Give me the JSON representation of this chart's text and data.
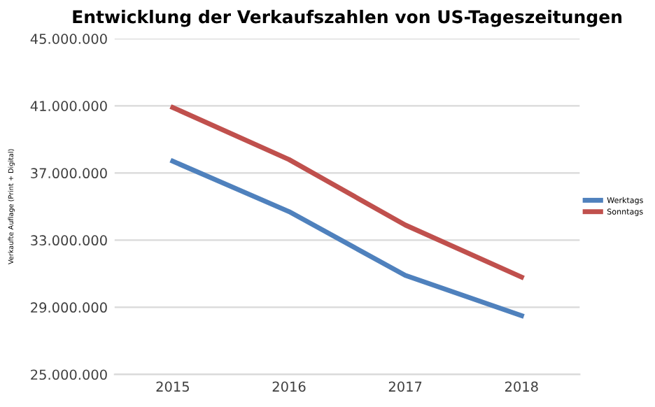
{
  "chart_data": {
    "type": "line",
    "title": "Entwicklung der Verkaufszahlen von US-Tageszeitungen",
    "ylabel": "Verkaufte Auflage (Print + Digital)",
    "categories": [
      "2015",
      "2016",
      "2017",
      "2018"
    ],
    "series": [
      {
        "name": "Werktags",
        "color": "#4f81bd",
        "values": [
          37700000,
          34700000,
          30900000,
          28500000
        ]
      },
      {
        "name": "Sonntags",
        "color": "#c0504d",
        "values": [
          40900000,
          37800000,
          33900000,
          30800000
        ]
      }
    ],
    "ylim": [
      25000000,
      45000000
    ],
    "yticks": [
      {
        "value": 25000000,
        "label": "25.000.000"
      },
      {
        "value": 29000000,
        "label": "29.000.000"
      },
      {
        "value": 33000000,
        "label": "33.000.000"
      },
      {
        "value": 37000000,
        "label": "37.000.000"
      },
      {
        "value": 41000000,
        "label": "41.000.000"
      },
      {
        "value": 45000000,
        "label": "45.000.000"
      }
    ],
    "grid": "y",
    "legend": "right",
    "marker": "none",
    "line_style": "solid"
  }
}
